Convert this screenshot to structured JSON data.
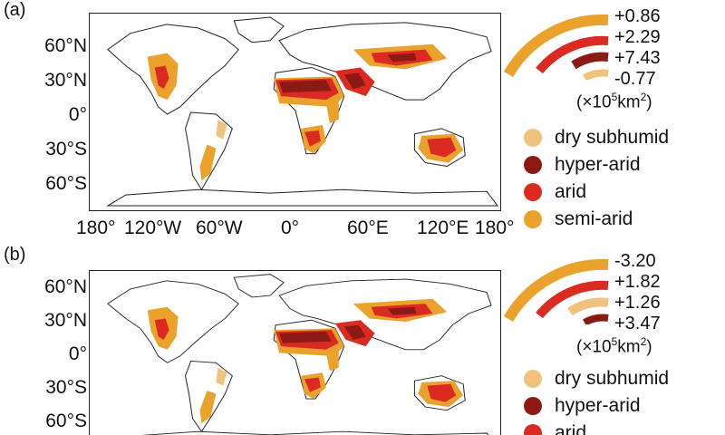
{
  "colors": {
    "dry_subhumid": "#efc27d",
    "hyper_arid": "#8b1a14",
    "arid": "#db2a22",
    "semi_arid": "#eba22d"
  },
  "lat_ticks": [
    "60°N",
    "30°N",
    "0°",
    "30°S",
    "60°S"
  ],
  "lon_ticks": [
    "180°",
    "120°W",
    "60°W",
    "0°",
    "60°E",
    "120°E",
    "180°"
  ],
  "unit": "(×10",
  "unit_exp": "5",
  "unit_suffix": "km",
  "unit_exp2": "2",
  "unit_close": ")",
  "legend": [
    {
      "key": "dry_subhumid",
      "label": "dry subhumid"
    },
    {
      "key": "hyper_arid",
      "label": "hyper-arid"
    },
    {
      "key": "arid",
      "label": "arid"
    },
    {
      "key": "semi_arid",
      "label": "semi-arid"
    }
  ],
  "panels": {
    "a": {
      "label": "(a)",
      "changes": [
        {
          "class": "semi_arid",
          "text": "+0.86"
        },
        {
          "class": "arid",
          "text": "+2.29"
        },
        {
          "class": "hyper_arid",
          "text": "+7.43"
        },
        {
          "class": "dry_subhumid",
          "text": "-0.77"
        }
      ]
    },
    "b": {
      "label": "(b)",
      "changes": [
        {
          "class": "semi_arid",
          "text": "-3.20"
        },
        {
          "class": "arid",
          "text": "+1.82"
        },
        {
          "class": "dry_subhumid",
          "text": "+1.26"
        },
        {
          "class": "hyper_arid",
          "text": "+3.47"
        }
      ]
    }
  }
}
